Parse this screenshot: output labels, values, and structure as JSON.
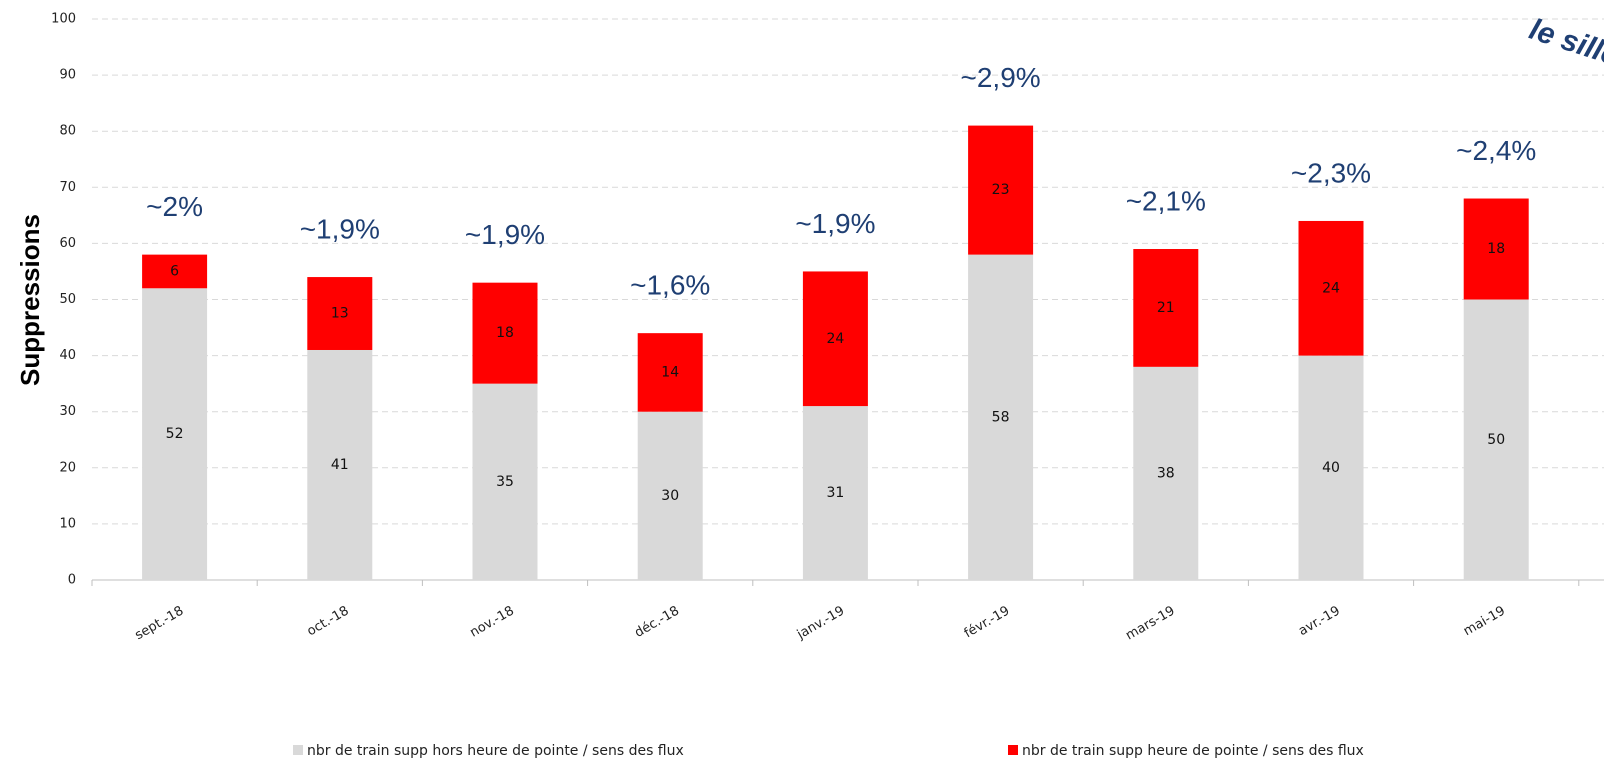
{
  "chart_data": {
    "type": "stacked_bar",
    "y_label": "Suppressions",
    "categories": [
      "sept.-18",
      "oct.-18",
      "nov.-18",
      "déc.-18",
      "janv.-19",
      "févr.-19",
      "mars-19",
      "avr.-19",
      "mai-19"
    ],
    "series": [
      {
        "name": "nbr de train supp hors heure de pointe / sens des flux",
        "color": "#d9d9d9",
        "values": [
          52,
          41,
          35,
          30,
          31,
          58,
          38,
          40,
          50
        ]
      },
      {
        "name": "nbr de train supp heure de pointe / sens des flux",
        "color": "#ff0000",
        "values": [
          6,
          13,
          18,
          14,
          24,
          23,
          21,
          24,
          18
        ]
      }
    ],
    "annotations": [
      "~2%",
      "~1,9%",
      "~1,9%",
      "~1,6%",
      "~1,9%",
      "~2,9%",
      "~2,1%",
      "~2,3%",
      "~2,4%"
    ],
    "corner_text": "le sillon",
    "ylim": [
      0,
      100
    ],
    "yticks": [
      0,
      10,
      20,
      30,
      40,
      50,
      60,
      70,
      80,
      90,
      100
    ],
    "grid": true
  }
}
